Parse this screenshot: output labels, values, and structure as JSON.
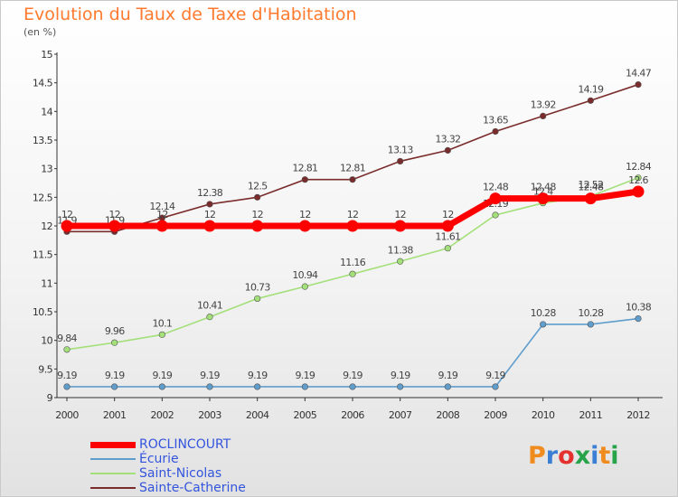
{
  "title": "Evolution du Taux de Taxe d'Habitation",
  "subtitle": "(en %)",
  "logo": {
    "text": "Proxiti",
    "letter_colors": [
      "#f08c1e",
      "#3b7fd4",
      "#e53030",
      "#27a34a",
      "#3b7fd4",
      "#f08c1e",
      "#27a34a"
    ]
  },
  "chart_data": {
    "type": "line",
    "title": "Evolution du Taux de Taxe d'Habitation",
    "ylabel": "(en %)",
    "xlabel": "",
    "ylim": [
      9,
      15
    ],
    "yticks": [
      9,
      9.5,
      10,
      10.5,
      11,
      11.5,
      12,
      12.5,
      13,
      13.5,
      14,
      14.5,
      15
    ],
    "ytick_labels": [
      "9",
      "9.5",
      "10",
      "10.5",
      "11",
      "11.5",
      "12",
      "12.5",
      "13",
      "13.5",
      "14",
      "14.5",
      "15"
    ],
    "grid": false,
    "legend_position": "bottom-left",
    "categories": [
      "2000",
      "2001",
      "2002",
      "2003",
      "2004",
      "2005",
      "2006",
      "2007",
      "2008",
      "2009",
      "2010",
      "2011",
      "2012"
    ],
    "series": [
      {
        "name": "ROCLINCOURT",
        "color": "#ff0000",
        "emphasis": true,
        "values": [
          12,
          12,
          12,
          12,
          12,
          12,
          12,
          12,
          12,
          12.48,
          12.48,
          12.48,
          12.6
        ],
        "labels": [
          "12",
          "12",
          "12",
          "12",
          "12",
          "12",
          "12",
          "12",
          "12",
          "12.48",
          "12.48",
          "12.48",
          "12.6"
        ]
      },
      {
        "name": "Écurie",
        "color": "#5f9dcd",
        "values": [
          9.19,
          9.19,
          9.19,
          9.19,
          9.19,
          9.19,
          9.19,
          9.19,
          9.19,
          9.19,
          10.28,
          10.28,
          10.38
        ],
        "labels": [
          "9.19",
          "9.19",
          "9.19",
          "9.19",
          "9.19",
          "9.19",
          "9.19",
          "9.19",
          "9.19",
          "9.19",
          "10.28",
          "10.28",
          "10.38"
        ]
      },
      {
        "name": "Saint-Nicolas",
        "color": "#a3e07a",
        "values": [
          9.84,
          9.96,
          10.1,
          10.41,
          10.73,
          10.94,
          11.16,
          11.38,
          11.61,
          12.19,
          12.4,
          12.52,
          12.84
        ],
        "labels": [
          "9.84",
          "9.96",
          "10.1",
          "10.41",
          "10.73",
          "10.94",
          "11.16",
          "11.38",
          "11.61",
          "12.19",
          "12.4",
          "12.52",
          "12.84"
        ]
      },
      {
        "name": "Sainte-Catherine",
        "color": "#7a2c2c",
        "values": [
          11.9,
          11.9,
          12.14,
          12.38,
          12.5,
          12.81,
          12.81,
          13.13,
          13.32,
          13.65,
          13.92,
          14.19,
          14.47
        ],
        "labels": [
          "11.9",
          "11.9",
          "12.14",
          "12.38",
          "12.5",
          "12.81",
          "12.81",
          "13.13",
          "13.32",
          "13.65",
          "13.92",
          "14.19",
          "14.47"
        ]
      }
    ]
  }
}
